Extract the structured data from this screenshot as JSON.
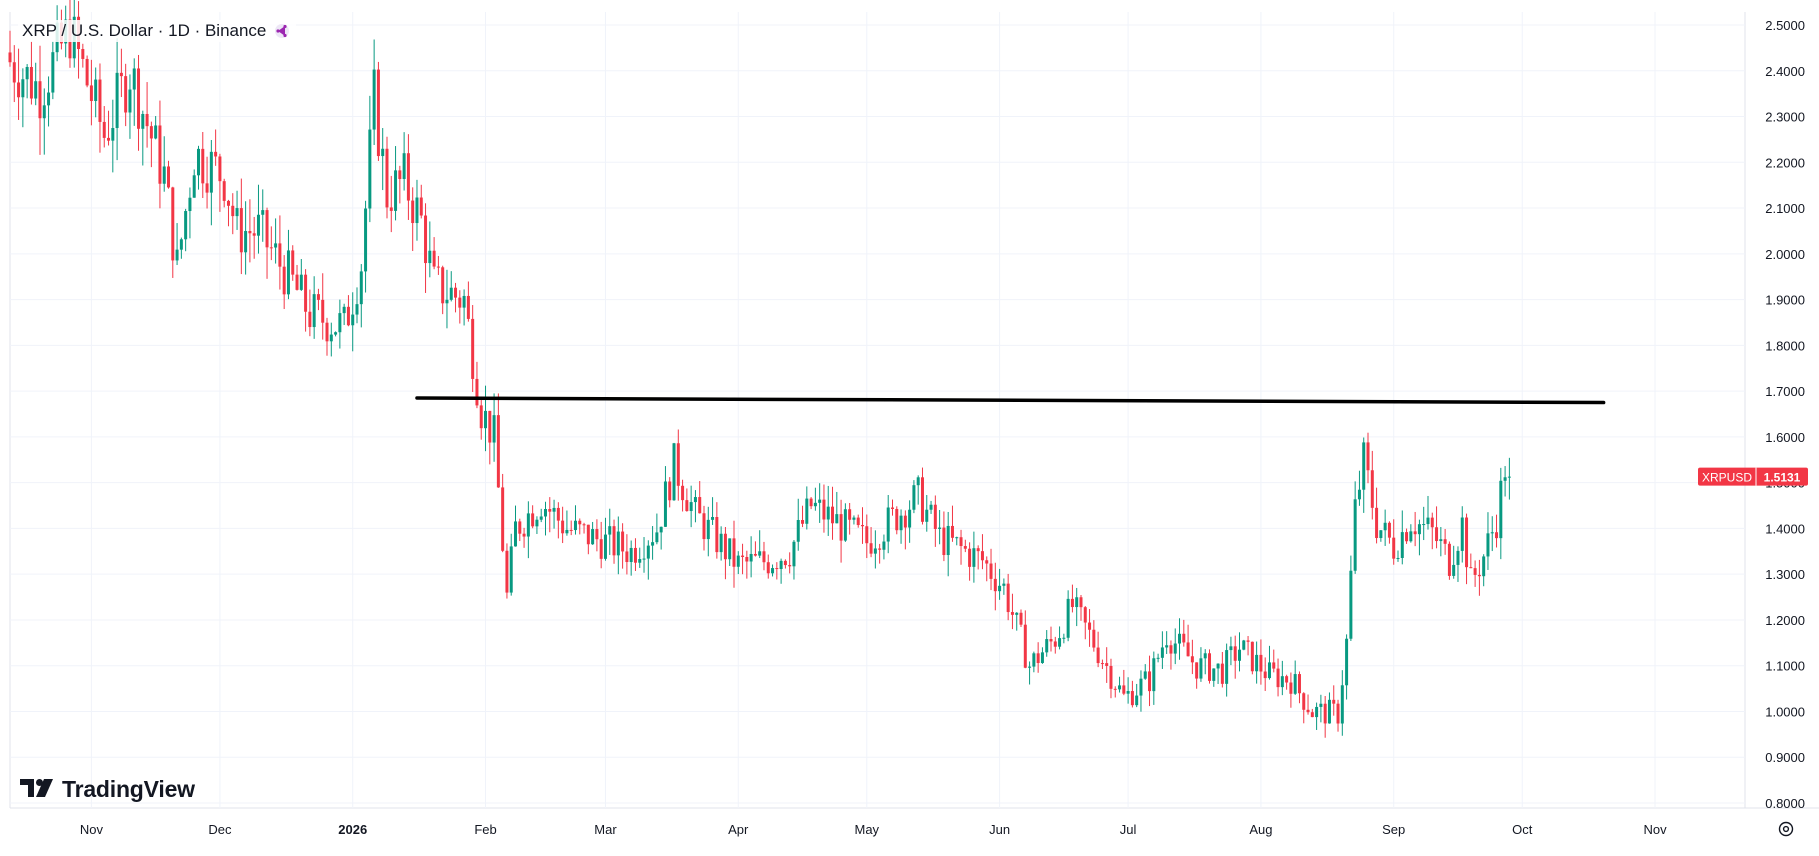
{
  "legend": {
    "symbol_text": "XRP / U.S. Dollar · 1D · Binance",
    "share_icon": "share-arrow-icon"
  },
  "brand": {
    "name": "TradingView",
    "logo_icon": "tradingview-logo-icon"
  },
  "price_tag": {
    "symbol": "XRPUSD",
    "price": "1.5131"
  },
  "settings_icon": "gear-icon",
  "colors": {
    "up": "#089981",
    "down": "#f23645",
    "tag": "#f23645",
    "trendline": "#000000",
    "grid": "#f0f3fa"
  },
  "chart_data": {
    "type": "candlestick",
    "title": "XRP / U.S. Dollar · 1D · Binance",
    "x_axis_labels": [
      "Nov",
      "Dec",
      "2026",
      "Feb",
      "Mar",
      "Apr",
      "May",
      "Jun",
      "Jul",
      "Aug",
      "Sep",
      "Oct",
      "Nov"
    ],
    "y_axis_labels": [
      "2.5000",
      "2.4000",
      "2.3000",
      "2.2000",
      "2.1000",
      "2.0000",
      "1.9000",
      "1.8000",
      "1.7000",
      "1.6000",
      "1.5000",
      "1.4000",
      "1.3000",
      "1.2000",
      "1.1000",
      "1.0000",
      "0.9000",
      "0.8000"
    ],
    "ylim": [
      0.8,
      2.5
    ],
    "x_range": [
      "2025-10-13",
      "2026-11-22"
    ],
    "grid": true,
    "trendline": {
      "from": [
        "2026-01-16",
        1.685
      ],
      "to": [
        "2026-10-20",
        1.675
      ]
    },
    "last_price": 1.5131,
    "anchors": [
      [
        "2025-10-13",
        2.42
      ],
      [
        "2025-10-20",
        2.36
      ],
      [
        "2025-10-27",
        2.49
      ],
      [
        "2025-11-04",
        2.26
      ],
      [
        "2025-11-10",
        2.4
      ],
      [
        "2025-11-18",
        2.17
      ],
      [
        "2025-11-21",
        1.97
      ],
      [
        "2025-11-25",
        2.22
      ],
      [
        "2025-12-02",
        2.17
      ],
      [
        "2025-12-05",
        2.05
      ],
      [
        "2025-12-10",
        2.05
      ],
      [
        "2025-12-17",
        1.95
      ],
      [
        "2025-12-22",
        1.87
      ],
      [
        "2025-12-30",
        1.84
      ],
      [
        "2026-01-03",
        1.98
      ],
      [
        "2026-01-06",
        2.34
      ],
      [
        "2026-01-09",
        2.13
      ],
      [
        "2026-01-13",
        2.16
      ],
      [
        "2026-01-17",
        2.07
      ],
      [
        "2026-01-20",
        1.93
      ],
      [
        "2026-01-27",
        1.9
      ],
      [
        "2026-01-31",
        1.66
      ],
      [
        "2026-02-03",
        1.6
      ],
      [
        "2026-02-06",
        1.25
      ],
      [
        "2026-02-08",
        1.4
      ],
      [
        "2026-02-14",
        1.46
      ],
      [
        "2026-02-20",
        1.4
      ],
      [
        "2026-03-01",
        1.37
      ],
      [
        "2026-03-07",
        1.35
      ],
      [
        "2026-03-13",
        1.4
      ],
      [
        "2026-03-17",
        1.54
      ],
      [
        "2026-03-22",
        1.43
      ],
      [
        "2026-04-01",
        1.32
      ],
      [
        "2026-04-08",
        1.33
      ],
      [
        "2026-04-13",
        1.35
      ],
      [
        "2026-04-18",
        1.45
      ],
      [
        "2026-04-23",
        1.42
      ],
      [
        "2026-05-01",
        1.37
      ],
      [
        "2026-05-07",
        1.42
      ],
      [
        "2026-05-13",
        1.47
      ],
      [
        "2026-05-18",
        1.38
      ],
      [
        "2026-05-28",
        1.33
      ],
      [
        "2026-06-02",
        1.27
      ],
      [
        "2026-06-08",
        1.1
      ],
      [
        "2026-06-14",
        1.16
      ],
      [
        "2026-06-18",
        1.23
      ],
      [
        "2026-06-23",
        1.15
      ],
      [
        "2026-06-30",
        1.03
      ],
      [
        "2026-07-06",
        1.07
      ],
      [
        "2026-07-10",
        1.17
      ],
      [
        "2026-07-17",
        1.1
      ],
      [
        "2026-07-23",
        1.09
      ],
      [
        "2026-07-27",
        1.14
      ],
      [
        "2026-08-03",
        1.08
      ],
      [
        "2026-08-08",
        1.07
      ],
      [
        "2026-08-13",
        1.0
      ],
      [
        "2026-08-19",
        0.995
      ],
      [
        "2026-08-21",
        1.15
      ],
      [
        "2026-08-23",
        1.44
      ],
      [
        "2026-08-25",
        1.55
      ],
      [
        "2026-08-28",
        1.41
      ],
      [
        "2026-09-01",
        1.36
      ],
      [
        "2026-09-05",
        1.42
      ],
      [
        "2026-09-10",
        1.39
      ],
      [
        "2026-09-14",
        1.33
      ],
      [
        "2026-09-17",
        1.41
      ],
      [
        "2026-09-19",
        1.28
      ],
      [
        "2026-09-22",
        1.34
      ],
      [
        "2026-09-25",
        1.42
      ],
      [
        "2026-09-27",
        1.535
      ],
      [
        "2026-09-28",
        1.5131
      ]
    ]
  }
}
